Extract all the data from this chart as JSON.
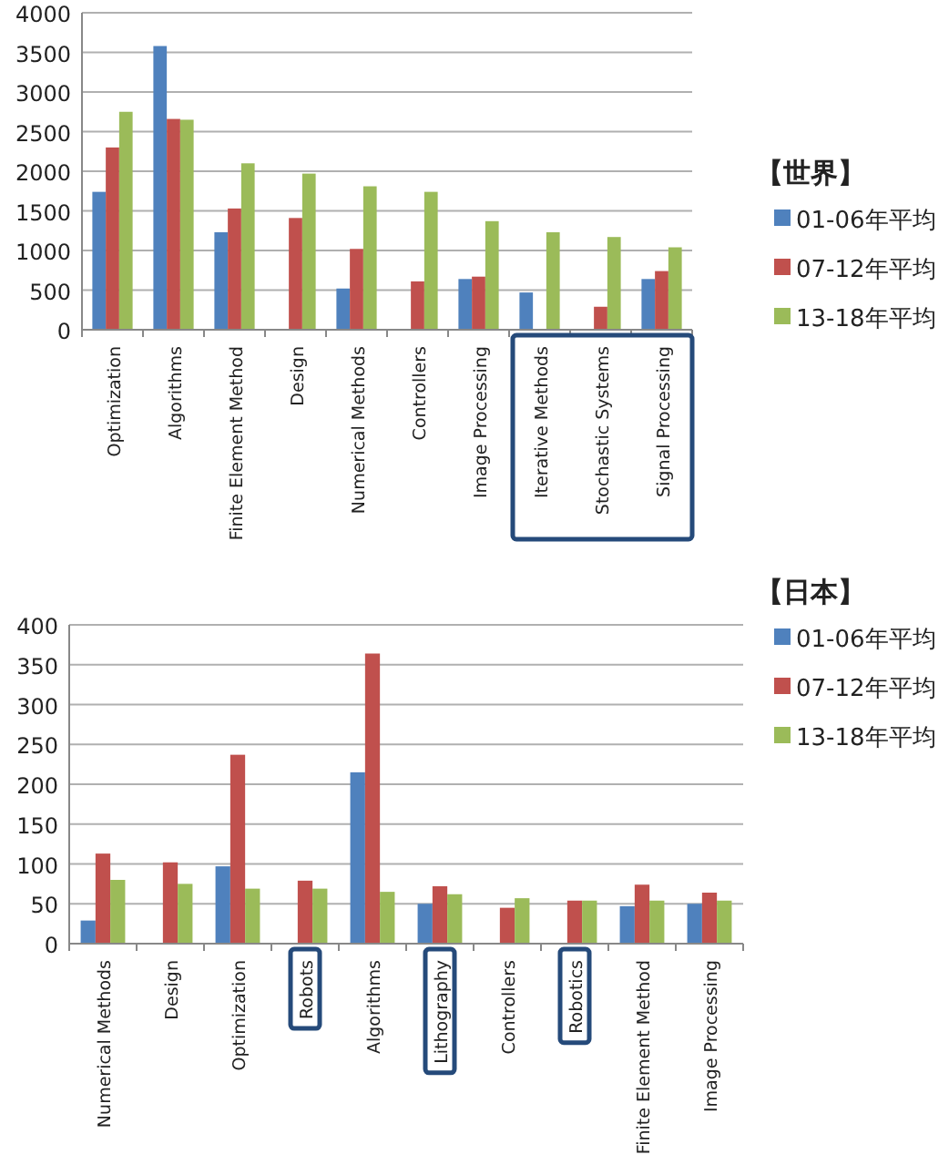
{
  "chart_data": [
    {
      "type": "bar",
      "legend_title": "【世界】",
      "categories": [
        "Optimization",
        "Algorithms",
        "Finite Element Method",
        "Design",
        "Numerical Methods",
        "Controllers",
        "Image Processing",
        "Iterative Methods",
        "Stochastic Systems",
        "Signal Processing"
      ],
      "series": [
        {
          "name": "01-06年平均",
          "color": "#4f81bd",
          "values": [
            1740,
            3580,
            1230,
            null,
            520,
            null,
            640,
            470,
            null,
            640
          ]
        },
        {
          "name": "07-12年平均",
          "color": "#c0504d",
          "values": [
            2300,
            2660,
            1530,
            1410,
            1020,
            610,
            670,
            null,
            290,
            740
          ]
        },
        {
          "name": "13-18年平均",
          "color": "#9bbb59",
          "values": [
            2750,
            2650,
            2100,
            1970,
            1810,
            1740,
            1370,
            1230,
            1170,
            1040
          ]
        }
      ],
      "ylim": [
        0,
        4000
      ],
      "yticks": [
        0,
        500,
        1000,
        1500,
        2000,
        2500,
        3000,
        3500,
        4000
      ],
      "grid": "y",
      "legend": "right"
    },
    {
      "type": "bar",
      "legend_title": "【日本】",
      "categories": [
        "Numerical Methods",
        "Design",
        "Optimization",
        "Robots",
        "Algorithms",
        "Lithography",
        "Controllers",
        "Robotics",
        "Finite Element Method",
        "Image Processing"
      ],
      "series": [
        {
          "name": "01-06年平均",
          "color": "#4f81bd",
          "values": [
            29,
            null,
            97,
            null,
            215,
            50,
            null,
            null,
            47,
            50
          ]
        },
        {
          "name": "07-12年平均",
          "color": "#c0504d",
          "values": [
            113,
            102,
            237,
            79,
            364,
            72,
            45,
            54,
            74,
            64
          ]
        },
        {
          "name": "13-18年平均",
          "color": "#9bbb59",
          "values": [
            80,
            75,
            69,
            69,
            65,
            62,
            57,
            54,
            54,
            54
          ]
        }
      ],
      "ylim": [
        0,
        400
      ],
      "yticks": [
        0,
        50,
        100,
        150,
        200,
        250,
        300,
        350,
        400
      ],
      "grid": "y",
      "legend": "top right"
    }
  ]
}
